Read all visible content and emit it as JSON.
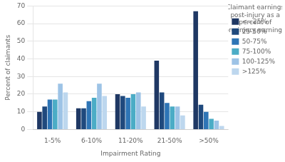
{
  "chart_data": {
    "type": "bar",
    "xlabel": "Impairment Rating",
    "ylabel": "Percent of claimants",
    "legend_title": "Claimant earnings\npost-injury as a\npercent of\npre-injury earnings",
    "categories": [
      "1-5%",
      "6-10%",
      "11-20%",
      "21-50%",
      ">50%"
    ],
    "series": [
      {
        "name": "<=25%",
        "color": "#1f3864",
        "values": [
          10,
          12,
          20,
          39,
          67
        ]
      },
      {
        "name": "25-50%",
        "color": "#1f497d",
        "values": [
          13,
          12,
          19,
          21,
          14
        ]
      },
      {
        "name": "50-75%",
        "color": "#2e75b6",
        "values": [
          17,
          16,
          18,
          15,
          10
        ]
      },
      {
        "name": "75-100%",
        "color": "#4bacc6",
        "values": [
          17,
          18,
          20,
          13,
          6
        ]
      },
      {
        "name": "100-125%",
        "color": "#9dc3e6",
        "values": [
          26,
          26,
          21,
          13,
          5
        ]
      },
      {
        "name": ">125%",
        "color": "#bdd7ee",
        "values": [
          21,
          19,
          13,
          8,
          2
        ]
      }
    ],
    "ylim": [
      0,
      70
    ],
    "yticks": [
      0,
      10,
      20,
      30,
      40,
      50,
      60,
      70
    ],
    "grid": true,
    "legend": "right"
  }
}
